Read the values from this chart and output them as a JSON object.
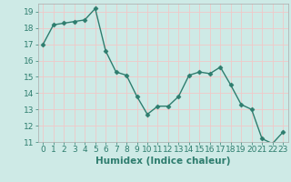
{
  "x": [
    0,
    1,
    2,
    3,
    4,
    5,
    6,
    7,
    8,
    9,
    10,
    11,
    12,
    13,
    14,
    15,
    16,
    17,
    18,
    19,
    20,
    21,
    22,
    23
  ],
  "y": [
    17.0,
    18.2,
    18.3,
    18.4,
    18.5,
    19.2,
    16.6,
    15.3,
    15.1,
    13.8,
    12.7,
    13.2,
    13.2,
    13.8,
    15.1,
    15.3,
    15.2,
    15.6,
    14.5,
    13.3,
    13.0,
    11.2,
    10.9,
    11.6
  ],
  "line_color": "#2e7d6e",
  "marker": "D",
  "marker_size": 2.5,
  "bg_color": "#ceeae6",
  "grid_color": "#f0c8c8",
  "xlabel": "Humidex (Indice chaleur)",
  "xlim": [
    -0.5,
    23.5
  ],
  "ylim": [
    11,
    19.5
  ],
  "yticks": [
    11,
    12,
    13,
    14,
    15,
    16,
    17,
    18,
    19
  ],
  "xticks": [
    0,
    1,
    2,
    3,
    4,
    5,
    6,
    7,
    8,
    9,
    10,
    11,
    12,
    13,
    14,
    15,
    16,
    17,
    18,
    19,
    20,
    21,
    22,
    23
  ],
  "xlabel_fontsize": 7.5,
  "tick_fontsize": 6.5,
  "line_width": 1.0
}
